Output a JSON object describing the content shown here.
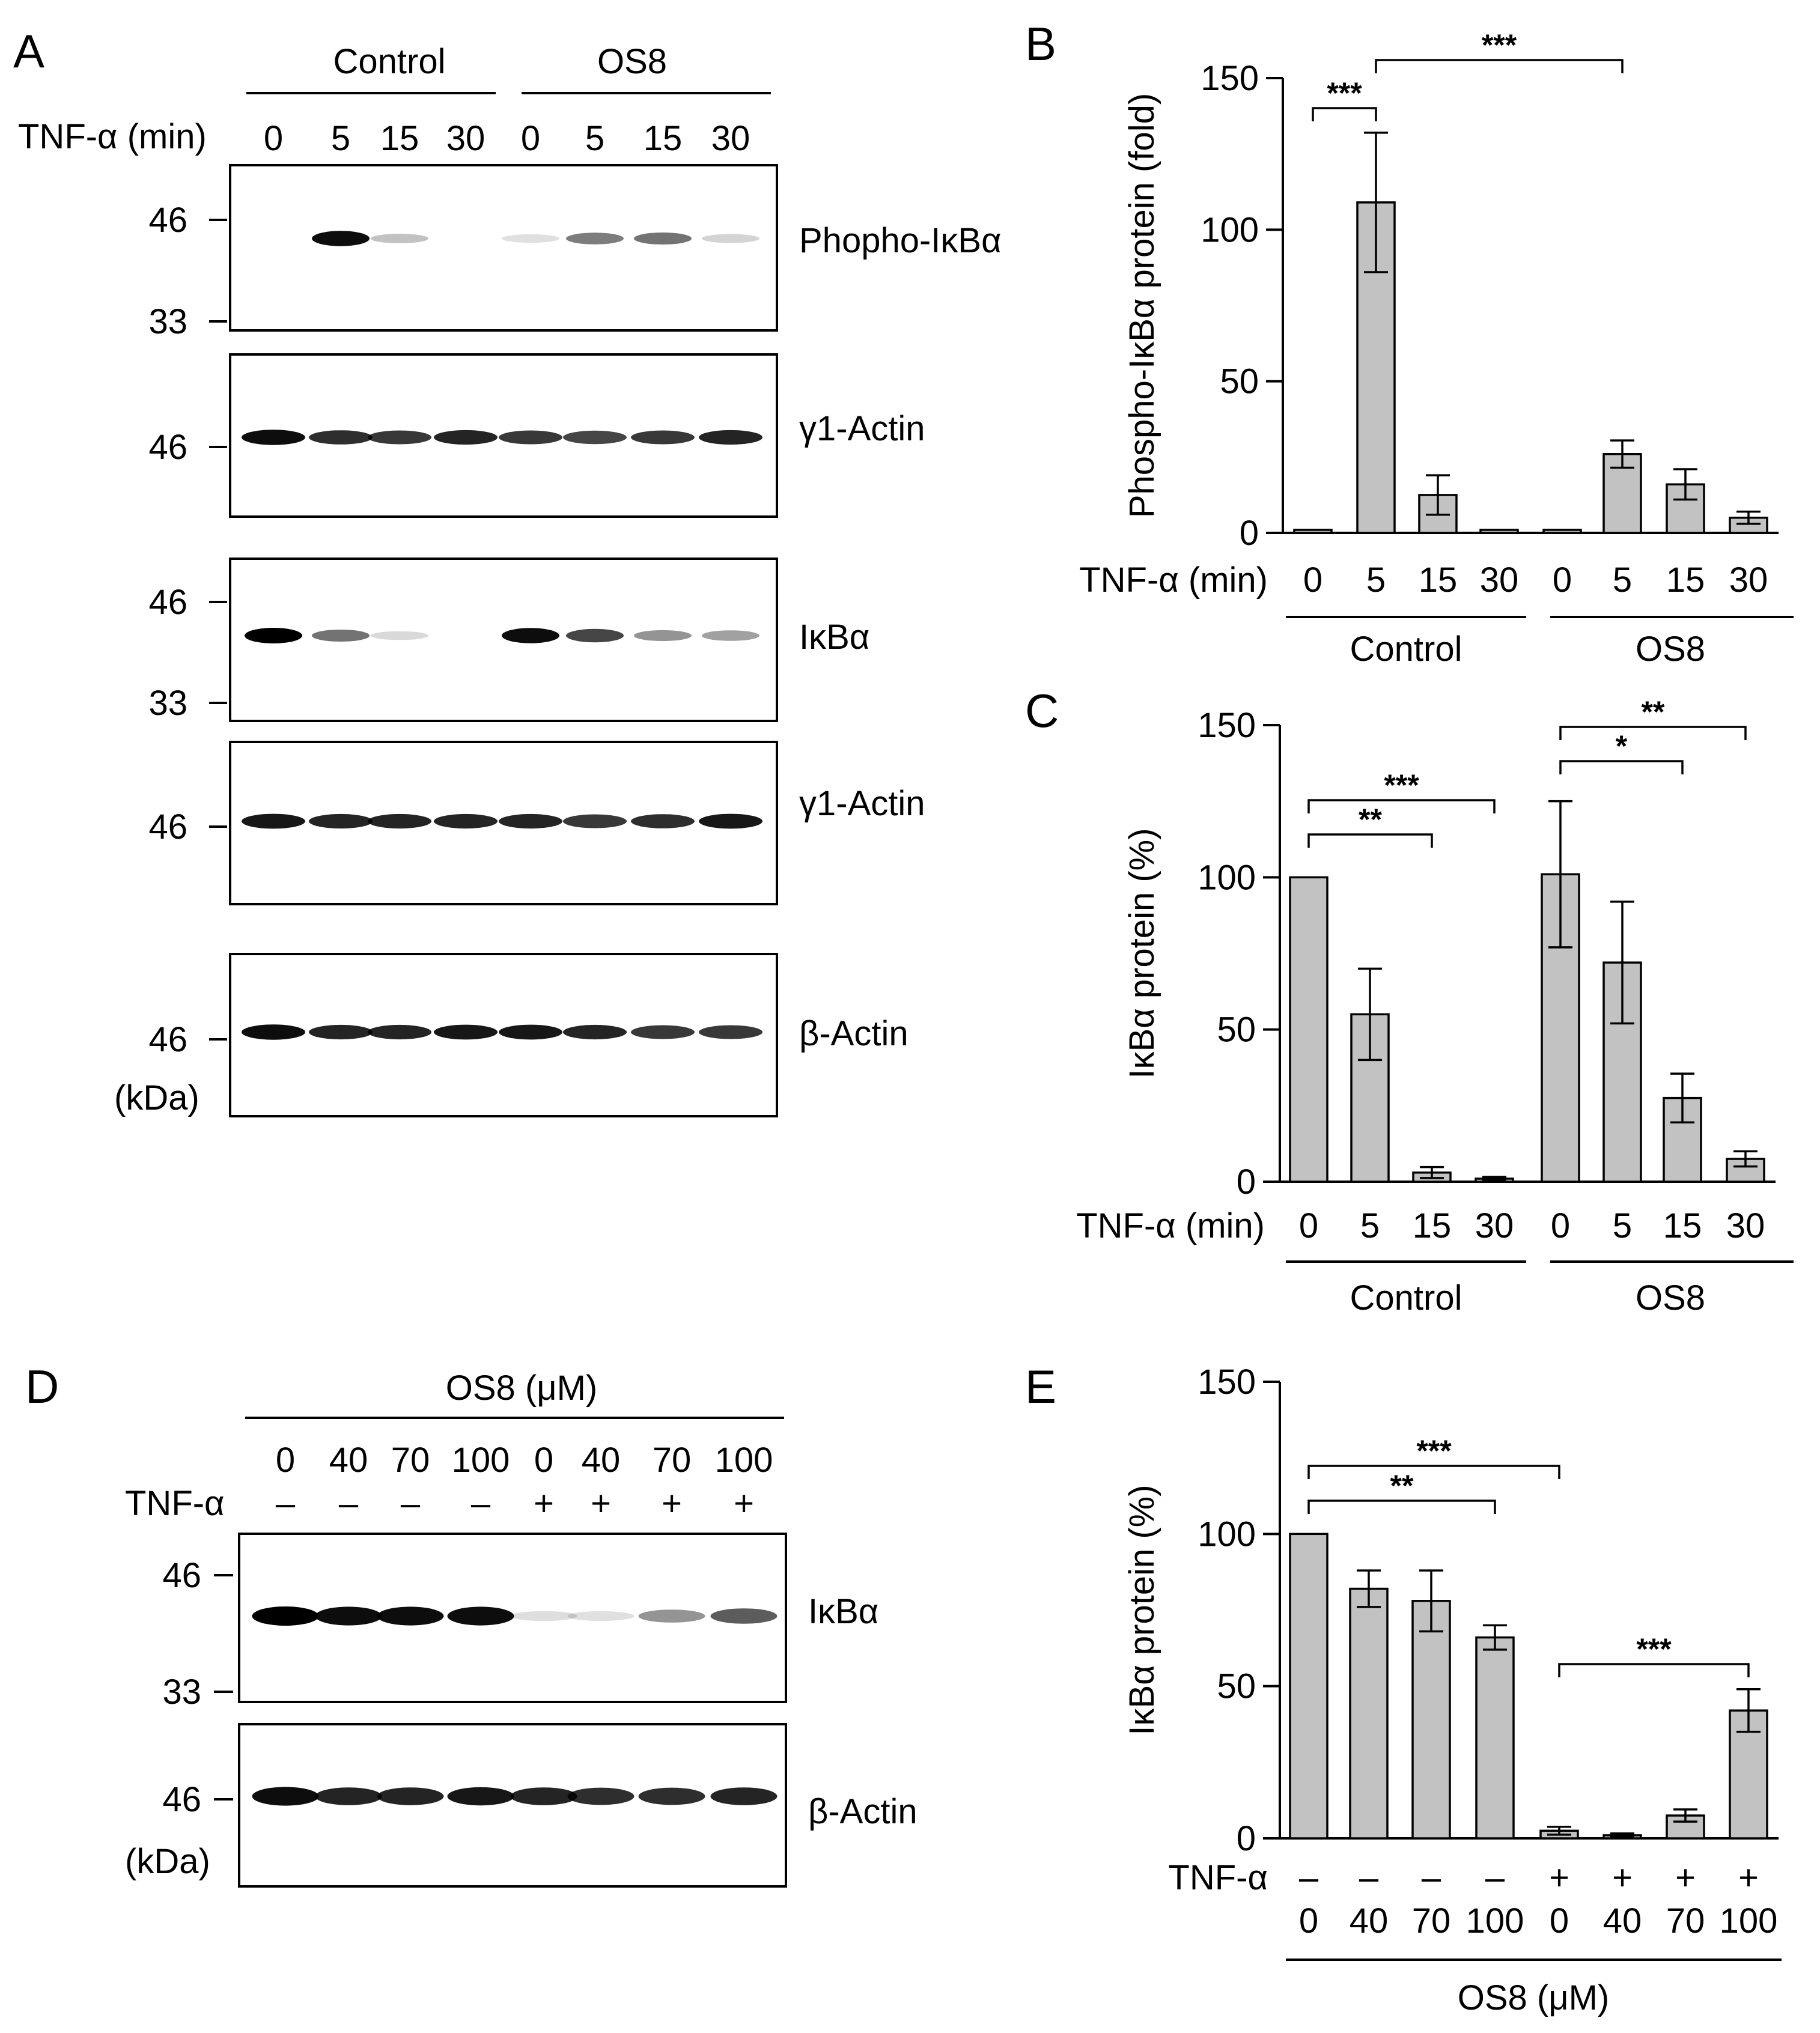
{
  "panels": {
    "A": {
      "letter": "A",
      "groups": [
        "Control",
        "OS8"
      ],
      "time_label": "TNF-α (min)",
      "times": [
        "0",
        "5",
        "15",
        "30",
        "0",
        "5",
        "15",
        "30"
      ],
      "blots": [
        {
          "label": "Phopho-IκBα",
          "markers": [
            "46",
            "33"
          ],
          "intensity": [
            0.0,
            0.95,
            0.15,
            0.0,
            0.02,
            0.45,
            0.5,
            0.08
          ]
        },
        {
          "label": "γ1-Actin",
          "markers": [
            "46"
          ],
          "intensity": [
            0.95,
            0.8,
            0.75,
            0.85,
            0.75,
            0.7,
            0.75,
            0.85
          ]
        },
        {
          "label": "IκBα",
          "markers": [
            "46",
            "33"
          ],
          "intensity": [
            1.0,
            0.5,
            0.05,
            0.0,
            0.95,
            0.7,
            0.35,
            0.3
          ]
        },
        {
          "label": "γ1-Actin",
          "markers": [
            "46"
          ],
          "intensity": [
            0.9,
            0.85,
            0.85,
            0.85,
            0.85,
            0.75,
            0.8,
            0.9
          ]
        },
        {
          "label": "β-Actin",
          "markers": [
            "46"
          ],
          "intensity": [
            0.95,
            0.85,
            0.85,
            0.9,
            0.9,
            0.85,
            0.75,
            0.75
          ]
        }
      ],
      "kda_label": "(kDa)"
    },
    "D": {
      "letter": "D",
      "header": "OS8 (μM)",
      "doses": [
        "0",
        "40",
        "70",
        "100",
        "0",
        "40",
        "70",
        "100"
      ],
      "tnf_label": "TNF-α",
      "tnf": [
        "–",
        "–",
        "–",
        "–",
        "+",
        "+",
        "+",
        "+"
      ],
      "blots": [
        {
          "label": "IκBα",
          "markers": [
            "46",
            "33"
          ],
          "intensity": [
            1.0,
            0.95,
            0.95,
            0.95,
            0.03,
            0.02,
            0.35,
            0.6
          ]
        },
        {
          "label": "β-Actin",
          "markers": [
            "46"
          ],
          "intensity": [
            0.95,
            0.85,
            0.85,
            0.9,
            0.85,
            0.8,
            0.8,
            0.85
          ]
        }
      ],
      "kda_label": "(kDa)"
    }
  },
  "chart_data": [
    {
      "panel": "B",
      "type": "bar",
      "ylabel": "Phospho-IκBα protein  (fold)",
      "ylim": [
        0,
        150
      ],
      "yticks": [
        "0",
        "50",
        "100",
        "150"
      ],
      "row_label": "TNF-α (min)",
      "categories": [
        "0",
        "5",
        "15",
        "30",
        "0",
        "5",
        "15",
        "30"
      ],
      "groups": [
        "Control",
        "OS8"
      ],
      "values": [
        1,
        109,
        12.5,
        1,
        1,
        26,
        16,
        5
      ],
      "errors": [
        0,
        23,
        6.5,
        0,
        0,
        4.5,
        5,
        2
      ],
      "significance": [
        {
          "from": 0,
          "to": 1,
          "stars": "***"
        },
        {
          "from": 1,
          "to": 5,
          "stars": "***"
        }
      ]
    },
    {
      "panel": "C",
      "type": "bar",
      "ylabel": "IκBα protein  (%)",
      "ylim": [
        0,
        150
      ],
      "yticks": [
        "0",
        "50",
        "100",
        "150"
      ],
      "row_label": "TNF-α (min)",
      "categories": [
        "0",
        "5",
        "15",
        "30",
        "0",
        "5",
        "15",
        "30"
      ],
      "groups": [
        "Control",
        "OS8"
      ],
      "values": [
        100,
        55,
        3,
        1,
        101,
        72,
        27.5,
        7.5
      ],
      "errors": [
        0,
        15,
        1.8,
        0.6,
        24,
        20,
        8,
        2.5
      ],
      "significance": [
        {
          "from": 0,
          "to": 3,
          "stars": "***"
        },
        {
          "from": 0,
          "to": 2,
          "stars": "**"
        },
        {
          "from": 4,
          "to": 7,
          "stars": "**"
        },
        {
          "from": 4,
          "to": 6,
          "stars": "*"
        }
      ]
    },
    {
      "panel": "E",
      "type": "bar",
      "ylabel": "IκBα protein  (%)",
      "ylim": [
        0,
        150
      ],
      "yticks": [
        "0",
        "50",
        "100",
        "150"
      ],
      "row_label": "TNF-α",
      "tnf": [
        "–",
        "–",
        "–",
        "–",
        "+",
        "+",
        "+",
        "+"
      ],
      "categories": [
        "0",
        "40",
        "70",
        "100",
        "0",
        "40",
        "70",
        "100"
      ],
      "xlabel": "OS8 (μM)",
      "values": [
        100,
        82,
        78,
        66,
        2.5,
        1,
        7.5,
        42
      ],
      "errors": [
        0,
        6,
        10,
        4,
        1.3,
        0.6,
        2,
        7
      ],
      "significance": [
        {
          "from": 0,
          "to": 4,
          "stars": "***"
        },
        {
          "from": 0,
          "to": 3,
          "stars": "**"
        },
        {
          "from": 4,
          "to": 7,
          "stars": "***"
        }
      ]
    }
  ]
}
